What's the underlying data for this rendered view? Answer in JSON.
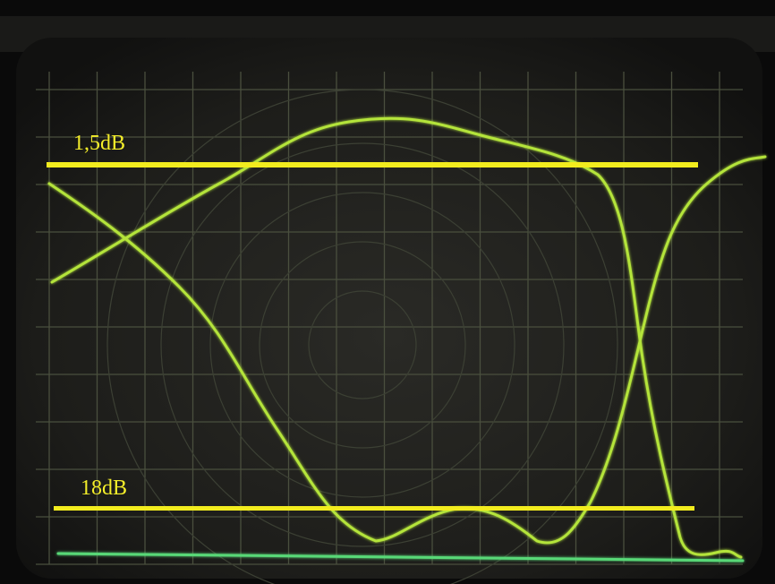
{
  "annotations": {
    "upper_line_label": "1,5dB",
    "lower_line_label": "18dB"
  }
}
